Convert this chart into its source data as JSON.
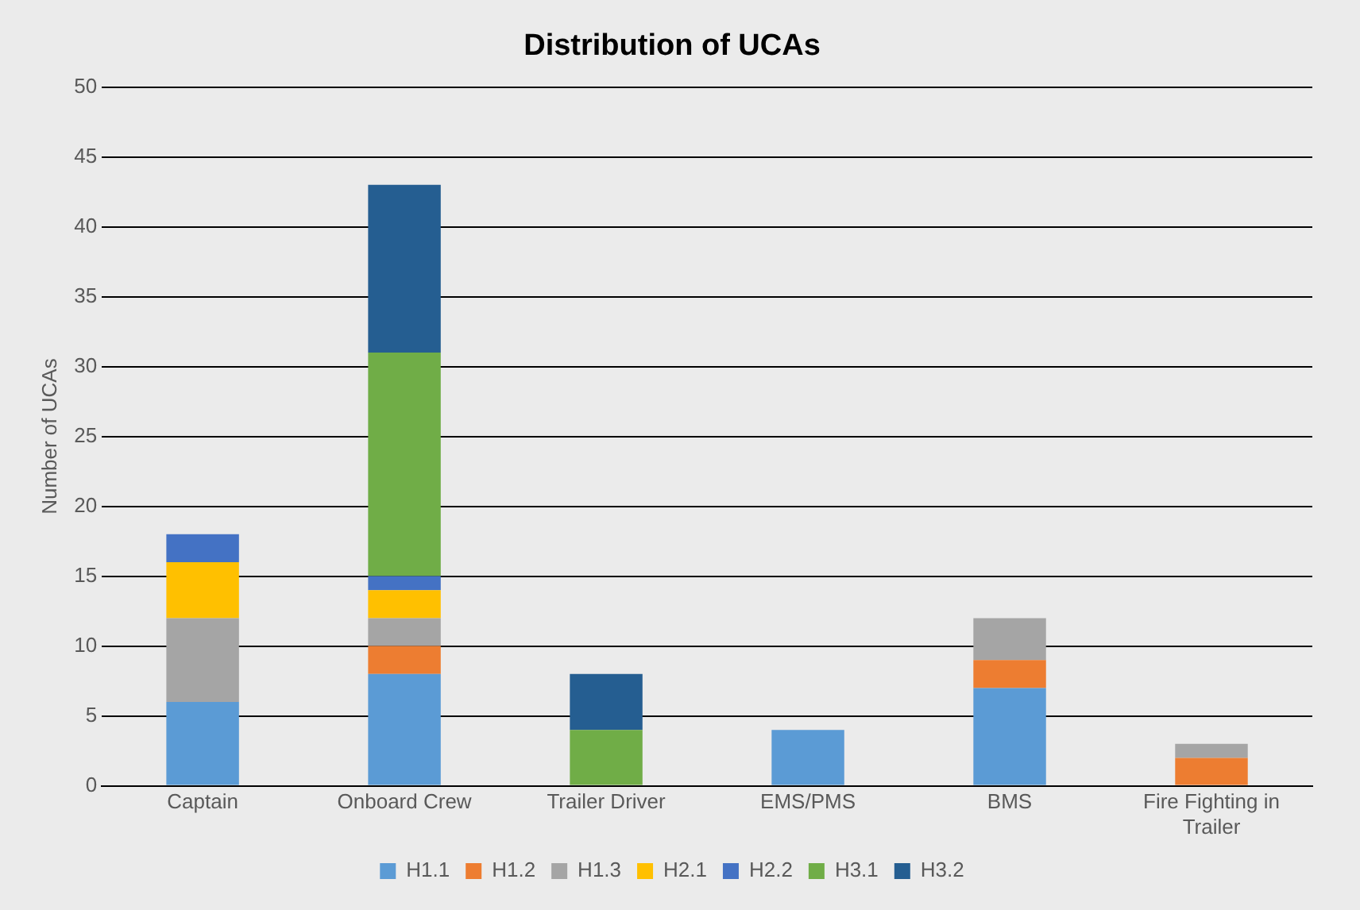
{
  "chart_data": {
    "type": "bar",
    "title": "Distribution of UCAs",
    "ylabel": "Number of UCAs",
    "stacked": true,
    "grid": "y",
    "legend": "bottom",
    "categories": [
      "Captain",
      "Onboard Crew",
      "Trailer Driver",
      "EMS/PMS",
      "BMS",
      "Fire Fighting in Trailer"
    ],
    "ylim": [
      0,
      50
    ],
    "yticks": [
      0,
      5,
      10,
      15,
      20,
      25,
      30,
      35,
      40,
      45,
      50
    ],
    "series": [
      {
        "name": "H1.1",
        "color": "#5b9bd5",
        "values": [
          6,
          8,
          0,
          4,
          7,
          0
        ]
      },
      {
        "name": "H1.2",
        "color": "#ed7d31",
        "values": [
          0,
          2,
          0,
          0,
          2,
          2
        ]
      },
      {
        "name": "H1.3",
        "color": "#a5a5a5",
        "values": [
          6,
          2,
          0,
          0,
          3,
          1
        ]
      },
      {
        "name": "H2.1",
        "color": "#ffc000",
        "values": [
          4,
          2,
          0,
          0,
          0,
          0
        ]
      },
      {
        "name": "H2.2",
        "color": "#4472c4",
        "values": [
          2,
          1,
          0,
          0,
          0,
          0
        ]
      },
      {
        "name": "H3.1",
        "color": "#70ad47",
        "values": [
          0,
          16,
          4,
          0,
          0,
          0
        ]
      },
      {
        "name": "H3.2",
        "color": "#255e91",
        "values": [
          0,
          12,
          4,
          0,
          0,
          0
        ]
      }
    ]
  }
}
